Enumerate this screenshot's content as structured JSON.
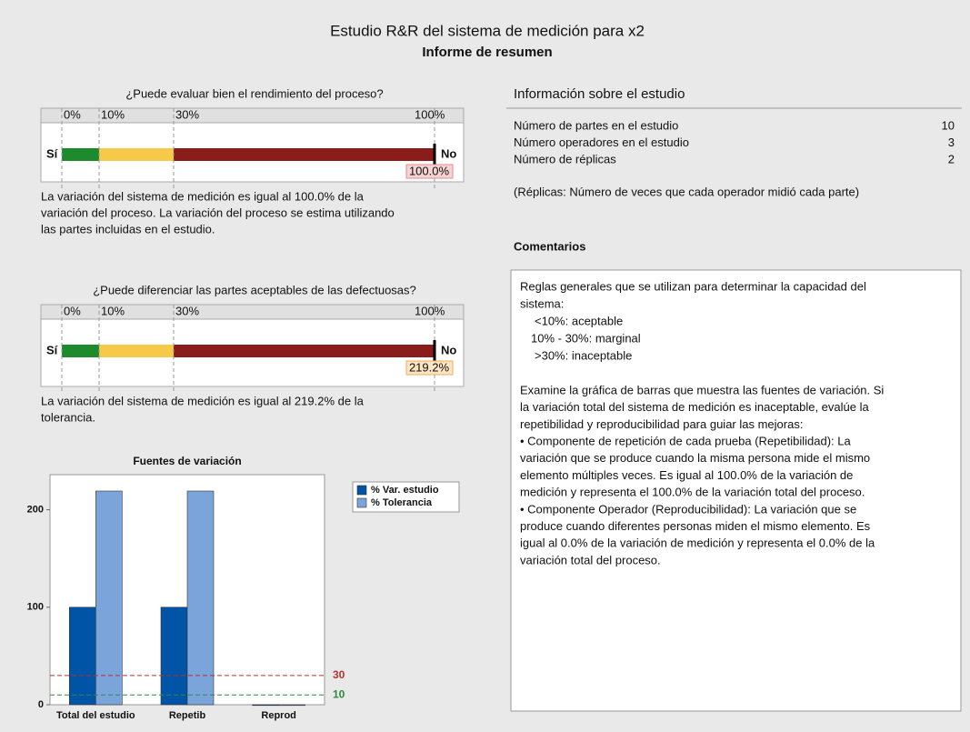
{
  "header": {
    "title": "Estudio R&R del sistema de medición para x2",
    "subtitle": "Informe de resumen"
  },
  "chart_data": [
    {
      "type": "gauge",
      "title": "¿Puede evaluar bien el rendimiento del proceso?",
      "xlim": [
        0,
        100
      ],
      "xticks": [
        {
          "value": 0,
          "label": "0%"
        },
        {
          "value": 10,
          "label": "10%"
        },
        {
          "value": 30,
          "label": "30%"
        },
        {
          "value": 100,
          "label": "100%"
        }
      ],
      "zones": [
        {
          "from": 0,
          "to": 10,
          "color": "#1e8a2e"
        },
        {
          "from": 10,
          "to": 30,
          "color": "#f7c948"
        },
        {
          "from": 30,
          "to": 100,
          "color": "#8b1c1c"
        }
      ],
      "left_label": "Sí",
      "right_label": "No",
      "value": 100.0,
      "value_label": "100.0%",
      "label_fill": "#f6d3d3",
      "label_stroke": "#e08c8c",
      "description": [
        "La variación del sistema de medición es igual al 100.0% de la",
        "variación del proceso. La variación del proceso se estima utilizando",
        "las partes incluidas en el estudio."
      ]
    },
    {
      "type": "gauge",
      "title": "¿Puede diferenciar las partes aceptables de las defectuosas?",
      "xlim": [
        0,
        100
      ],
      "xticks": [
        {
          "value": 0,
          "label": "0%"
        },
        {
          "value": 10,
          "label": "10%"
        },
        {
          "value": 30,
          "label": "30%"
        },
        {
          "value": 100,
          "label": "100%"
        }
      ],
      "zones": [
        {
          "from": 0,
          "to": 10,
          "color": "#1e8a2e"
        },
        {
          "from": 10,
          "to": 30,
          "color": "#f7c948"
        },
        {
          "from": 30,
          "to": 100,
          "color": "#8b1c1c"
        }
      ],
      "left_label": "Sí",
      "right_label": "No",
      "value": 219.2,
      "value_label": "219.2%",
      "label_fill": "#fde5c4",
      "label_stroke": "#eeac5a",
      "description": [
        "La variación del sistema de medición es igual al 219.2% de la",
        "tolerancia."
      ]
    },
    {
      "type": "bar",
      "title": "Fuentes de variación",
      "categories": [
        "Total del estudio",
        "Repetib",
        "Reprod"
      ],
      "series": [
        {
          "name": "% Var. estudio",
          "color": "#0054a6",
          "values": [
            100,
            100,
            0
          ]
        },
        {
          "name": "% Tolerancia",
          "color": "#7ba4da",
          "values": [
            219.2,
            219.2,
            0
          ]
        }
      ],
      "ylim": [
        0,
        236
      ],
      "yticks": [
        0,
        100,
        200
      ],
      "reference_lines": [
        {
          "value": 30,
          "color": "#b83232"
        },
        {
          "value": 10,
          "color": "#2e8b3e"
        }
      ],
      "legend": "outside-right"
    }
  ],
  "study_info": {
    "title": "Información sobre el estudio",
    "rows": [
      [
        "Número de partes en el estudio",
        10
      ],
      [
        "Número operadores en el estudio",
        3
      ],
      [
        "Número de réplicas",
        2
      ]
    ],
    "note": "(Réplicas: Número de veces que cada operador midió cada parte)"
  },
  "comments": {
    "title": "Comentarios",
    "intro": [
      "Reglas generales que se utilizan para determinar la capacidad del",
      "sistema:"
    ],
    "rules": [
      "<10%: aceptable",
      "10% - 30%: marginal",
      ">30%: inaceptable"
    ],
    "body": [
      "Examine la gráfica de barras que muestra las fuentes de variación. Si",
      "la variación total del sistema de medición es inaceptable, evalúe la",
      "repetibilidad y reproducibilidad para guiar las mejoras:",
      "• Componente de repetición de cada prueba (Repetibilidad): La",
      "variación que se produce cuando la misma persona mide el mismo",
      "elemento múltiples veces. Es igual al 100.0% de la variación de",
      "medición y representa el 100.0% de la variación total del proceso.",
      "• Componente Operador (Reproducibilidad): La variación que se",
      "produce cuando diferentes personas miden el mismo elemento. Es",
      "igual al 0.0% de la variación de medición y representa el 0.0% de la",
      "variación total del proceso."
    ]
  }
}
